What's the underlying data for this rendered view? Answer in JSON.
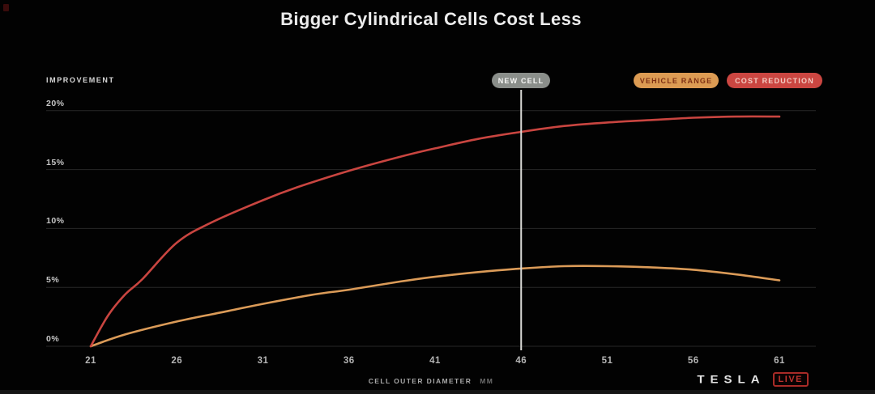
{
  "title": "Bigger Cylindrical Cells Cost Less",
  "axis": {
    "y_label": "IMPROVEMENT",
    "x_label": "CELL OUTER DIAMETER",
    "x_unit": "MM"
  },
  "annotation": {
    "label": "NEW CELL",
    "x": 46
  },
  "legend": [
    {
      "label": "VEHICLE RANGE",
      "bg": "#DC9B53",
      "fg": "#7E3014"
    },
    {
      "label": "COST REDUCTION",
      "bg": "#CB4641",
      "fg": "#F3CDC4"
    }
  ],
  "branding": {
    "wordmark": "TESLA",
    "badge": "LIVE"
  },
  "colors": {
    "background": "#020202",
    "gridline": "#272727",
    "new_cell_line": "#DADAD6",
    "vehicle_range_line": "#DB9B58",
    "cost_reduction_line": "#C94540"
  },
  "chart_data": {
    "type": "line",
    "title": "Bigger Cylindrical Cells Cost Less",
    "xlabel": "CELL OUTER DIAMETER (MM)",
    "ylabel": "IMPROVEMENT",
    "x_ticks": [
      21,
      26,
      31,
      36,
      41,
      46,
      51,
      56,
      61
    ],
    "y_ticks": [
      0,
      5,
      10,
      15,
      20
    ],
    "y_tick_suffix": "%",
    "xlim": [
      21,
      61
    ],
    "ylim": [
      0,
      21.5
    ],
    "grid": "horizontal",
    "legend_position": "top-right",
    "annotation": {
      "label": "NEW CELL",
      "x": 46
    },
    "series": [
      {
        "name": "VEHICLE RANGE",
        "color": "#DB9B58",
        "x": [
          21,
          23,
          26,
          29,
          31,
          34,
          36,
          39,
          41,
          43.5,
          46,
          48.5,
          51,
          53.5,
          56,
          58.5,
          61
        ],
        "y": [
          0,
          1.0,
          2.1,
          3.0,
          3.6,
          4.4,
          4.8,
          5.5,
          5.9,
          6.3,
          6.6,
          6.8,
          6.8,
          6.7,
          6.5,
          6.1,
          5.6
        ],
        "values_at_x_ticks": [
          0,
          2.1,
          3.6,
          4.8,
          5.9,
          6.6,
          6.8,
          6.5,
          5.6
        ]
      },
      {
        "name": "COST REDUCTION",
        "color": "#C94540",
        "x": [
          21,
          22,
          23,
          24,
          26,
          28,
          31,
          33,
          36,
          39,
          41,
          43.5,
          46,
          48.5,
          51,
          53.5,
          56,
          58.5,
          61
        ],
        "y": [
          0,
          2.6,
          4.4,
          5.7,
          8.8,
          10.5,
          12.4,
          13.5,
          14.9,
          16.1,
          16.8,
          17.6,
          18.2,
          18.7,
          19.0,
          19.2,
          19.4,
          19.5,
          19.5
        ],
        "values_at_x_ticks": [
          0,
          8.8,
          12.4,
          14.9,
          16.8,
          18.2,
          19.0,
          19.4,
          19.5
        ]
      }
    ]
  }
}
